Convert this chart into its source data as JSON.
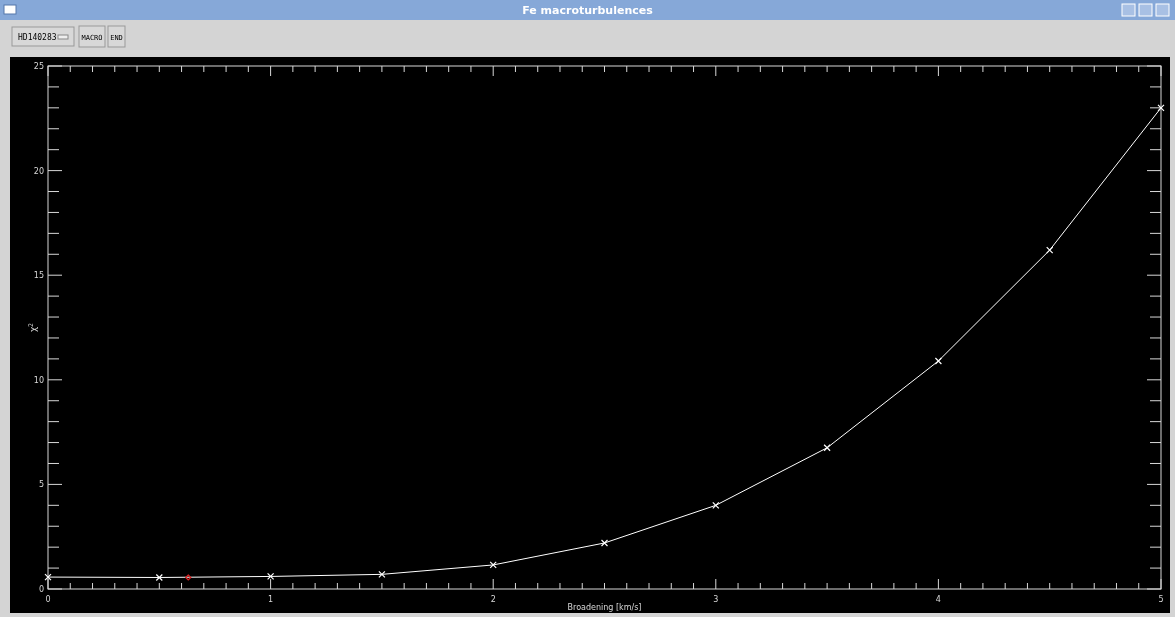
{
  "chart_data": {
    "type": "line",
    "title": "Fe macroturbulences",
    "xlabel": "Broadening [km/s]",
    "ylabel": "χ$^{2}$",
    "annotations": [
      "HD140283",
      "MACRO",
      "END"
    ],
    "series": [
      {
        "color": "#ffffff",
        "marker": "cross",
        "x": [
          0,
          0.5,
          1,
          1.5,
          2,
          2.5,
          3,
          3.5,
          4,
          4.5,
          5
        ],
        "values": [
          0.57,
          0.55,
          0.6,
          0.7,
          1.15,
          2.2,
          4.0,
          6.75,
          10.9,
          16.2,
          23.0
        ]
      },
      {
        "type": "scatter",
        "color": "#e02020",
        "marker": "diamond",
        "x": [
          0.63
        ],
        "values": [
          0.55
        ]
      }
    ],
    "xlim": [
      0,
      5
    ],
    "ylim": [
      0,
      25
    ],
    "xticks": [
      0,
      {
        "value": 0.1,
        "label": null
      },
      {
        "value": 0.2,
        "label": null
      },
      {
        "value": 0.3,
        "label": null
      },
      {
        "value": 0.4,
        "label": null
      },
      {
        "value": 0.5,
        "label": null
      },
      {
        "value": 0.6,
        "label": null
      },
      {
        "value": 0.7,
        "label": null
      },
      {
        "value": 0.8,
        "label": null
      },
      {
        "value": 0.9,
        "label": null
      },
      1,
      {
        "value": 1.1,
        "label": null
      },
      {
        "value": 1.2,
        "label": null
      },
      {
        "value": 1.3,
        "label": null
      },
      {
        "value": 1.4,
        "label": null
      },
      {
        "value": 1.5,
        "label": null
      },
      {
        "value": 1.6,
        "label": null
      },
      {
        "value": 1.7,
        "label": null
      },
      {
        "value": 1.8,
        "label": null
      },
      {
        "value": 1.9,
        "label": null
      },
      2,
      {
        "value": 2.1,
        "label": null
      },
      {
        "value": 2.2,
        "label": null
      },
      {
        "value": 2.3,
        "label": null
      },
      {
        "value": 2.4,
        "label": null
      },
      {
        "value": 2.5,
        "label": null
      },
      {
        "value": 2.6,
        "label": null
      },
      {
        "value": 2.7,
        "label": null
      },
      {
        "value": 2.8,
        "label": null
      },
      {
        "value": 2.9,
        "label": null
      },
      3,
      {
        "value": 3.1,
        "label": null
      },
      {
        "value": 3.2,
        "label": null
      },
      {
        "value": 3.3,
        "label": null
      },
      {
        "value": 3.4,
        "label": null
      },
      {
        "value": 3.5,
        "label": null
      },
      {
        "value": 3.6,
        "label": null
      },
      {
        "value": 3.7,
        "label": null
      },
      {
        "value": 3.8,
        "label": null
      },
      {
        "value": 3.9,
        "label": null
      },
      4,
      {
        "value": 4.1,
        "label": null
      },
      {
        "value": 4.2,
        "label": null
      },
      {
        "value": 4.3,
        "label": null
      },
      {
        "value": 4.4,
        "label": null
      },
      {
        "value": 4.5,
        "label": null
      },
      {
        "value": 4.6,
        "label": null
      },
      {
        "value": 4.7,
        "label": null
      },
      {
        "value": 4.8,
        "label": null
      },
      {
        "value": 4.9,
        "label": null
      },
      5
    ],
    "yticks": [
      0,
      {
        "value": 1,
        "label": null
      },
      {
        "value": 2,
        "label": null
      },
      {
        "value": 3,
        "label": null
      },
      {
        "value": 4,
        "label": null
      },
      5,
      {
        "value": 6,
        "label": null
      },
      {
        "value": 7,
        "label": null
      },
      {
        "value": 8,
        "label": null
      },
      {
        "value": 9,
        "label": null
      },
      10,
      {
        "value": 11,
        "label": null
      },
      {
        "value": 12,
        "label": null
      },
      {
        "value": 13,
        "label": null
      },
      {
        "value": 14,
        "label": null
      },
      15,
      {
        "value": 16,
        "label": null
      },
      {
        "value": 17,
        "label": null
      },
      {
        "value": 18,
        "label": null
      },
      {
        "value": 19,
        "label": null
      },
      20,
      {
        "value": 21,
        "label": null
      },
      {
        "value": 22,
        "label": null
      },
      {
        "value": 23,
        "label": null
      },
      {
        "value": 24,
        "label": null
      },
      25
    ],
    "grid": false
  }
}
